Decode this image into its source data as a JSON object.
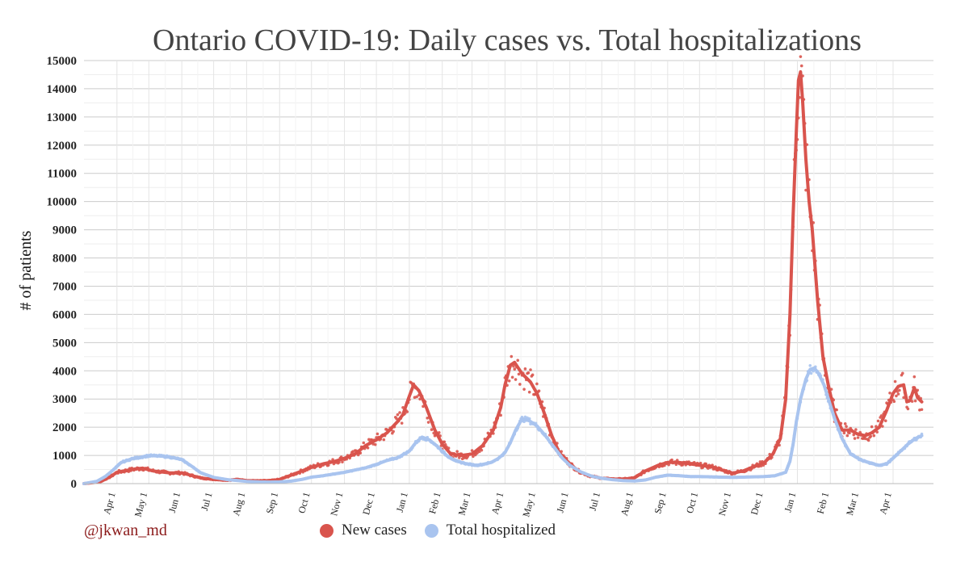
{
  "chart_data": {
    "type": "line",
    "title": "Ontario COVID-19: Daily cases vs. Total hospitalizations",
    "xlabel": "",
    "ylabel": "# of patients",
    "credit": "@jkwan_md",
    "ylim": [
      0,
      15000
    ],
    "yticks": [
      0,
      1000,
      2000,
      3000,
      4000,
      5000,
      6000,
      7000,
      8000,
      9000,
      10000,
      11000,
      12000,
      13000,
      14000,
      15000
    ],
    "x_unit": "days since Mar 1, 2020",
    "xlim": [
      0,
      799
    ],
    "xticks": [
      {
        "label": "Apr 1",
        "day": 31
      },
      {
        "label": "May 1",
        "day": 61
      },
      {
        "label": "Jun 1",
        "day": 92
      },
      {
        "label": "Jul 1",
        "day": 122
      },
      {
        "label": "Aug 1",
        "day": 153
      },
      {
        "label": "Sep 1",
        "day": 184
      },
      {
        "label": "Oct 1",
        "day": 214
      },
      {
        "label": "Nov 1",
        "day": 245
      },
      {
        "label": "Dec 1",
        "day": 275
      },
      {
        "label": "Jan 1",
        "day": 306
      },
      {
        "label": "Feb 1",
        "day": 337
      },
      {
        "label": "Mar 1",
        "day": 365
      },
      {
        "label": "Apr 1",
        "day": 396
      },
      {
        "label": "May 1",
        "day": 426
      },
      {
        "label": "Jun 1",
        "day": 457
      },
      {
        "label": "Jul 1",
        "day": 487
      },
      {
        "label": "Aug 1",
        "day": 518
      },
      {
        "label": "Sep 1",
        "day": 549
      },
      {
        "label": "Oct 1",
        "day": 579
      },
      {
        "label": "Nov 1",
        "day": 610
      },
      {
        "label": "Dec 1",
        "day": 640
      },
      {
        "label": "Jan 1",
        "day": 671
      },
      {
        "label": "Feb 1",
        "day": 702
      },
      {
        "label": "Mar 1",
        "day": 730
      },
      {
        "label": "Apr 1",
        "day": 761
      }
    ],
    "series": [
      {
        "name": "New cases",
        "color": "#d9544d",
        "points": [
          [
            0,
            0
          ],
          [
            15,
            60
          ],
          [
            25,
            250
          ],
          [
            31,
            400
          ],
          [
            45,
            500
          ],
          [
            55,
            550
          ],
          [
            65,
            450
          ],
          [
            80,
            380
          ],
          [
            92,
            380
          ],
          [
            100,
            300
          ],
          [
            110,
            200
          ],
          [
            122,
            150
          ],
          [
            135,
            120
          ],
          [
            145,
            150
          ],
          [
            153,
            110
          ],
          [
            165,
            100
          ],
          [
            175,
            110
          ],
          [
            184,
            150
          ],
          [
            195,
            300
          ],
          [
            205,
            450
          ],
          [
            214,
            580
          ],
          [
            225,
            700
          ],
          [
            235,
            780
          ],
          [
            245,
            900
          ],
          [
            255,
            1050
          ],
          [
            265,
            1350
          ],
          [
            275,
            1550
          ],
          [
            285,
            1800
          ],
          [
            295,
            2200
          ],
          [
            300,
            2450
          ],
          [
            306,
            3100
          ],
          [
            310,
            3500
          ],
          [
            315,
            3300
          ],
          [
            322,
            2700
          ],
          [
            330,
            1900
          ],
          [
            337,
            1400
          ],
          [
            345,
            1050
          ],
          [
            355,
            1000
          ],
          [
            365,
            1050
          ],
          [
            375,
            1350
          ],
          [
            385,
            1900
          ],
          [
            392,
            2700
          ],
          [
            396,
            3500
          ],
          [
            401,
            4200
          ],
          [
            405,
            4300
          ],
          [
            412,
            3900
          ],
          [
            420,
            3600
          ],
          [
            426,
            3200
          ],
          [
            432,
            2600
          ],
          [
            440,
            1700
          ],
          [
            447,
            1100
          ],
          [
            457,
            700
          ],
          [
            465,
            450
          ],
          [
            475,
            280
          ],
          [
            487,
            190
          ],
          [
            500,
            160
          ],
          [
            510,
            170
          ],
          [
            518,
            210
          ],
          [
            528,
            450
          ],
          [
            540,
            650
          ],
          [
            549,
            750
          ],
          [
            560,
            750
          ],
          [
            570,
            700
          ],
          [
            579,
            650
          ],
          [
            590,
            600
          ],
          [
            600,
            480
          ],
          [
            610,
            370
          ],
          [
            620,
            450
          ],
          [
            630,
            600
          ],
          [
            640,
            750
          ],
          [
            648,
            1050
          ],
          [
            655,
            1600
          ],
          [
            660,
            3000
          ],
          [
            664,
            6000
          ],
          [
            667,
            9500
          ],
          [
            670,
            12500
          ],
          [
            672,
            14300
          ],
          [
            674,
            14600
          ],
          [
            676,
            13500
          ],
          [
            679,
            11500
          ],
          [
            682,
            10000
          ],
          [
            685,
            9000
          ],
          [
            690,
            6500
          ],
          [
            695,
            4500
          ],
          [
            700,
            3500
          ],
          [
            706,
            2500
          ],
          [
            713,
            1900
          ],
          [
            721,
            1900
          ],
          [
            728,
            1750
          ],
          [
            735,
            1700
          ],
          [
            741,
            1800
          ],
          [
            748,
            2000
          ],
          [
            755,
            2600
          ],
          [
            761,
            3200
          ],
          [
            766,
            3450
          ],
          [
            771,
            3500
          ],
          [
            774,
            2900
          ],
          [
            777,
            2950
          ],
          [
            781,
            3400
          ],
          [
            784,
            3050
          ],
          [
            788,
            2900
          ]
        ]
      },
      {
        "name": "Total hospitalized",
        "color": "#a9c4ef",
        "points": [
          [
            0,
            0
          ],
          [
            12,
            80
          ],
          [
            20,
            250
          ],
          [
            28,
            500
          ],
          [
            35,
            750
          ],
          [
            45,
            880
          ],
          [
            55,
            950
          ],
          [
            61,
            990
          ],
          [
            70,
            980
          ],
          [
            80,
            950
          ],
          [
            92,
            850
          ],
          [
            100,
            650
          ],
          [
            110,
            380
          ],
          [
            122,
            220
          ],
          [
            135,
            140
          ],
          [
            145,
            110
          ],
          [
            153,
            80
          ],
          [
            165,
            60
          ],
          [
            175,
            55
          ],
          [
            184,
            60
          ],
          [
            195,
            90
          ],
          [
            205,
            150
          ],
          [
            214,
            230
          ],
          [
            225,
            280
          ],
          [
            235,
            340
          ],
          [
            245,
            400
          ],
          [
            255,
            480
          ],
          [
            265,
            560
          ],
          [
            275,
            680
          ],
          [
            285,
            820
          ],
          [
            295,
            920
          ],
          [
            306,
            1150
          ],
          [
            312,
            1450
          ],
          [
            318,
            1650
          ],
          [
            325,
            1550
          ],
          [
            333,
            1300
          ],
          [
            341,
            1000
          ],
          [
            350,
            800
          ],
          [
            360,
            700
          ],
          [
            369,
            650
          ],
          [
            375,
            680
          ],
          [
            383,
            750
          ],
          [
            390,
            900
          ],
          [
            396,
            1100
          ],
          [
            401,
            1450
          ],
          [
            406,
            1900
          ],
          [
            412,
            2300
          ],
          [
            418,
            2250
          ],
          [
            426,
            2050
          ],
          [
            433,
            1750
          ],
          [
            441,
            1350
          ],
          [
            450,
            900
          ],
          [
            457,
            650
          ],
          [
            467,
            420
          ],
          [
            477,
            270
          ],
          [
            487,
            190
          ],
          [
            497,
            140
          ],
          [
            507,
            110
          ],
          [
            518,
            95
          ],
          [
            528,
            130
          ],
          [
            538,
            230
          ],
          [
            549,
            300
          ],
          [
            560,
            280
          ],
          [
            570,
            250
          ],
          [
            579,
            250
          ],
          [
            590,
            240
          ],
          [
            600,
            230
          ],
          [
            610,
            220
          ],
          [
            620,
            230
          ],
          [
            630,
            240
          ],
          [
            640,
            250
          ],
          [
            650,
            280
          ],
          [
            660,
            400
          ],
          [
            664,
            800
          ],
          [
            667,
            1400
          ],
          [
            670,
            2200
          ],
          [
            674,
            3000
          ],
          [
            679,
            3700
          ],
          [
            683,
            4050
          ],
          [
            687,
            4100
          ],
          [
            691,
            3900
          ],
          [
            696,
            3500
          ],
          [
            701,
            2900
          ],
          [
            706,
            2300
          ],
          [
            713,
            1600
          ],
          [
            721,
            1050
          ],
          [
            730,
            850
          ],
          [
            740,
            720
          ],
          [
            748,
            650
          ],
          [
            755,
            700
          ],
          [
            761,
            900
          ],
          [
            768,
            1150
          ],
          [
            775,
            1400
          ],
          [
            782,
            1600
          ],
          [
            788,
            1700
          ]
        ]
      }
    ]
  }
}
